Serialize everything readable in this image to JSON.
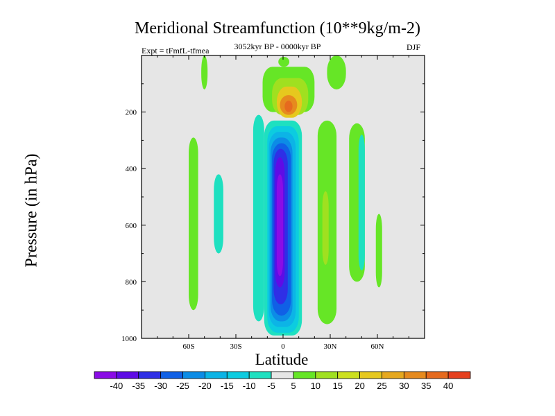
{
  "chart_data": {
    "type": "heatmap",
    "title": "Meridional Streamfunction (10**9kg/m-2)",
    "subtitle_left": "Expt = tFmfL-tfmea",
    "subtitle_center": "3052kyr BP - 0000kyr BP",
    "subtitle_right": "DJF",
    "xlabel": "Latitude",
    "ylabel": "Pressure (in hPa)",
    "xlim": [
      -90,
      90
    ],
    "ylim": [
      1000,
      0
    ],
    "x_ticks": [
      {
        "value": -60,
        "label": "60S"
      },
      {
        "value": -30,
        "label": "30S"
      },
      {
        "value": 0,
        "label": "0"
      },
      {
        "value": 30,
        "label": "30N"
      },
      {
        "value": 60,
        "label": "60N"
      }
    ],
    "y_ticks": [
      {
        "value": 200,
        "label": "200"
      },
      {
        "value": 400,
        "label": "400"
      },
      {
        "value": 600,
        "label": "600"
      },
      {
        "value": 800,
        "label": "800"
      },
      {
        "value": 1000,
        "label": "1000"
      }
    ],
    "colorbar": {
      "labels": [
        "-40",
        "-35",
        "-30",
        "-25",
        "-20",
        "-15",
        "-10",
        "-5",
        "5",
        "10",
        "15",
        "20",
        "25",
        "30",
        "35",
        "40"
      ],
      "colors": [
        "#8a0ce6",
        "#5e0ce6",
        "#2f2fe6",
        "#1060e6",
        "#0c8ce6",
        "#0cb4e6",
        "#0ccce0",
        "#1ee0c0",
        "#e6e6e6",
        "#66e626",
        "#a0e020",
        "#cce01e",
        "#e6c81e",
        "#e6a81e",
        "#e68a1e",
        "#e66a1e",
        "#e6401e"
      ]
    },
    "regions": [
      {
        "level": 5,
        "lat": [
          -3,
          4
        ],
        "p": [
          5,
          40
        ]
      },
      {
        "level": 5,
        "lat": [
          -13,
          20
        ],
        "p": [
          40,
          200
        ]
      },
      {
        "level": 10,
        "lat": [
          -7,
          16
        ],
        "p": [
          80,
          210
        ]
      },
      {
        "level": 20,
        "lat": [
          -4,
          12
        ],
        "p": [
          110,
          220
        ]
      },
      {
        "level": 30,
        "lat": [
          -2,
          9
        ],
        "p": [
          140,
          210
        ]
      },
      {
        "level": 35,
        "lat": [
          1,
          6
        ],
        "p": [
          160,
          200
        ]
      },
      {
        "level": -5,
        "lat": [
          -12,
          12
        ],
        "p": [
          230,
          990
        ]
      },
      {
        "level": -10,
        "lat": [
          -10,
          10
        ],
        "p": [
          250,
          980
        ]
      },
      {
        "level": -15,
        "lat": [
          -9,
          8
        ],
        "p": [
          270,
          960
        ]
      },
      {
        "level": -20,
        "lat": [
          -8,
          6
        ],
        "p": [
          290,
          940
        ]
      },
      {
        "level": -25,
        "lat": [
          -7,
          5
        ],
        "p": [
          310,
          920
        ]
      },
      {
        "level": -30,
        "lat": [
          -6,
          3
        ],
        "p": [
          330,
          880
        ]
      },
      {
        "level": -35,
        "lat": [
          -5,
          1
        ],
        "p": [
          360,
          820
        ]
      },
      {
        "level": -40,
        "lat": [
          -4,
          0
        ],
        "p": [
          420,
          780
        ]
      },
      {
        "level": -5,
        "lat": [
          -19,
          -12
        ],
        "p": [
          210,
          940
        ]
      },
      {
        "level": 5,
        "lat": [
          -60,
          -54
        ],
        "p": [
          290,
          900
        ]
      },
      {
        "level": -5,
        "lat": [
          -44,
          -38
        ],
        "p": [
          420,
          700
        ]
      },
      {
        "level": 5,
        "lat": [
          -52,
          -48
        ],
        "p": [
          0,
          120
        ]
      },
      {
        "level": 5,
        "lat": [
          28,
          40
        ],
        "p": [
          0,
          120
        ]
      },
      {
        "level": 5,
        "lat": [
          22,
          34
        ],
        "p": [
          230,
          950
        ]
      },
      {
        "level": 10,
        "lat": [
          25,
          29
        ],
        "p": [
          480,
          740
        ]
      },
      {
        "level": 5,
        "lat": [
          42,
          52
        ],
        "p": [
          240,
          800
        ]
      },
      {
        "level": -5,
        "lat": [
          48,
          52
        ],
        "p": [
          280,
          760
        ]
      },
      {
        "level": 5,
        "lat": [
          59,
          63
        ],
        "p": [
          560,
          820
        ]
      }
    ]
  }
}
